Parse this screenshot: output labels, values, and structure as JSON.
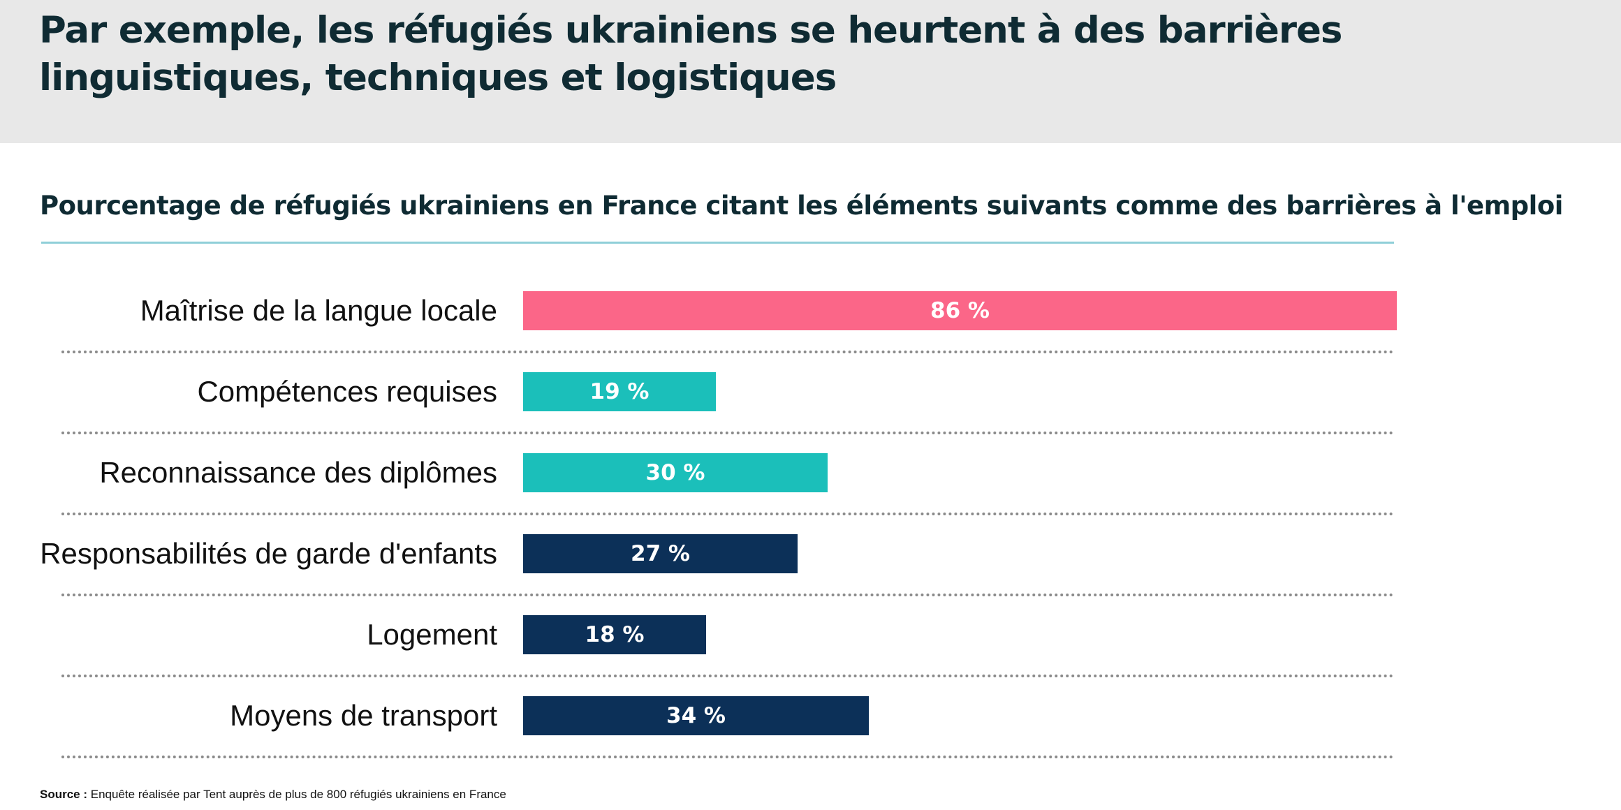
{
  "header": {
    "title": "Par exemple, les réfugiés ukrainiens se heurtent à des barrières linguistiques, techniques et logistiques"
  },
  "chart_data": {
    "type": "bar",
    "orientation": "horizontal",
    "title": "Pourcentage de réfugiés ukrainiens en France citant les éléments suivants comme des barrières à l'emploi",
    "categories": [
      "Maîtrise de la langue locale",
      "Compétences requises",
      "Reconnaissance des diplômes",
      "Responsabilités de garde d'enfants",
      "Logement",
      "Moyens de transport"
    ],
    "values": [
      86,
      19,
      30,
      27,
      18,
      34
    ],
    "value_labels": [
      "86 %",
      "19 %",
      "30 %",
      "27 %",
      "18 %",
      "34 %"
    ],
    "unit": "%",
    "xlim": [
      0,
      86
    ],
    "grid": false,
    "legend": "none",
    "bar_colors": [
      "#fb6688",
      "#1bbfba",
      "#1bbfba",
      "#0c3058",
      "#0c3058",
      "#0c3058"
    ]
  },
  "colors": {
    "header_background": "#e8e8e8",
    "title_text": "#0f2b33",
    "subtitle_rule": "#8fcfd8",
    "divider": "#8a8a8a"
  },
  "footer": {
    "source_label": "Source :",
    "source_text": "Enquête réalisée par Tent auprès de plus de 800 réfugiés ukrainiens en France"
  }
}
